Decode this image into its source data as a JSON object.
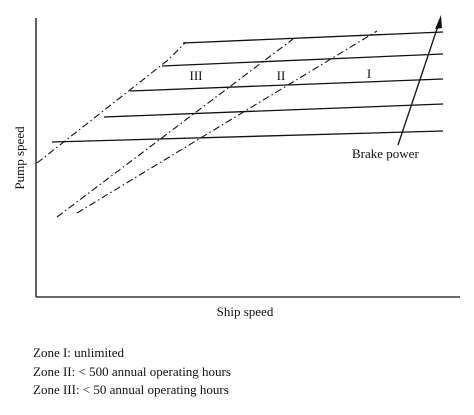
{
  "diagram": {
    "x_axis_label": "Ship speed",
    "y_axis_label": "Pump speed",
    "brake_power_label": "Brake power",
    "zones": [
      {
        "id": "zone-iii",
        "label": "III"
      },
      {
        "id": "zone-ii",
        "label": "II"
      },
      {
        "id": "zone-i",
        "label": "I"
      }
    ]
  },
  "legend": {
    "items": [
      "Zone I: unlimited",
      "Zone II: < 500 annual operating hours",
      "Zone III: < 50 annual operating hours"
    ]
  }
}
